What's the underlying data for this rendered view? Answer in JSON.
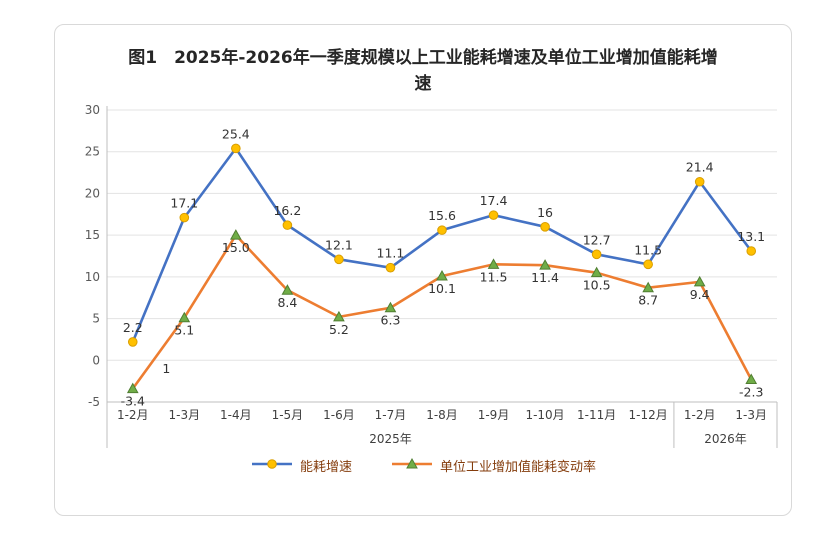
{
  "chart_data": {
    "type": "line",
    "title": "图1　2025年-2026年一季度规模以上工业能耗增速及单位工业增加值能耗增速",
    "categories": [
      "1-2月",
      "1-3月",
      "1-4月",
      "1-5月",
      "1-6月",
      "1-7月",
      "1-8月",
      "1-9月",
      "1-10月",
      "1-11月",
      "1-12月",
      "1-2月",
      "1-3月"
    ],
    "groups": [
      {
        "label": "2025年",
        "from": 0,
        "to": 10
      },
      {
        "label": "2026年",
        "from": 11,
        "to": 12
      }
    ],
    "ylim": [
      -5,
      30
    ],
    "ytick_step": 5,
    "grid": true,
    "legend_position": "bottom",
    "series": [
      {
        "name": "能耗增速",
        "color": "#4472C4",
        "marker": "circle",
        "marker_color": "#FFC000",
        "marker_edge": "#D99E00",
        "label_position": "above",
        "values": [
          2.2,
          17.1,
          25.4,
          16.2,
          12.1,
          11.1,
          15.6,
          17.4,
          16,
          12.7,
          11.5,
          21.4,
          13.1
        ],
        "labels": [
          "2.2",
          "17.1",
          "25.4",
          "16.2",
          "12.1",
          "11.1",
          "15.6",
          "17.4",
          "16",
          "12.7",
          "11.5",
          "21.4",
          "13.1"
        ]
      },
      {
        "name": "单位工业增加值能耗变动率",
        "color": "#ED7D31",
        "marker": "triangle",
        "marker_color": "#70AD47",
        "marker_edge": "#507E32",
        "label_position": "below",
        "values": [
          -3.4,
          5.1,
          15.0,
          8.4,
          5.2,
          6.3,
          10.1,
          11.5,
          11.4,
          10.5,
          8.7,
          9.4,
          -2.3
        ],
        "labels": [
          "-3.4",
          "5.1",
          "15.0",
          "8.4",
          "5.2",
          "6.3",
          "10.1",
          "11.5",
          "11.4",
          "10.5",
          "8.7",
          "9.4",
          "-2.3"
        ]
      }
    ],
    "annotations": [
      {
        "text": "1",
        "cat_index": 1,
        "value": -1.5,
        "dx": -18
      }
    ],
    "colors": {
      "grid": "#e3e3e3",
      "axis": "#bfbfbf",
      "title_text": "#262626",
      "legend_text": "#843C0C"
    }
  }
}
